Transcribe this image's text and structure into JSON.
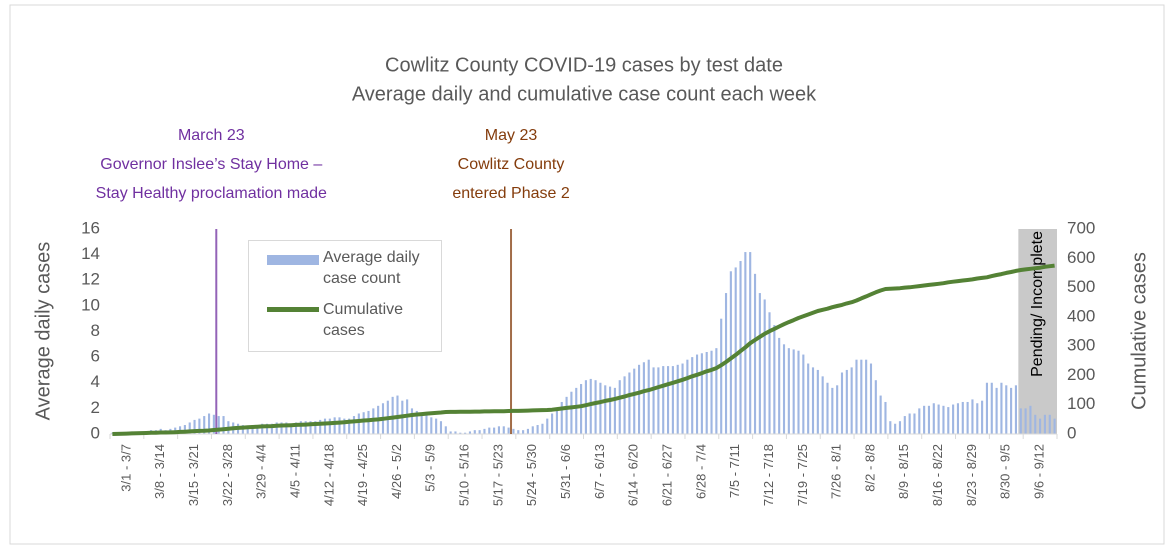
{
  "chart_data": {
    "type": "bar-line",
    "title": "Cowlitz County COVID-19 cases by test date",
    "subtitle": "Average daily and cumulative case count each week",
    "y_label": "Average daily cases",
    "y2_label": "Cumulative cases",
    "ylim": [
      0,
      16
    ],
    "yticks": [
      0,
      2,
      4,
      6,
      8,
      10,
      12,
      14,
      16
    ],
    "y2lim": [
      0,
      700
    ],
    "y2ticks": [
      0,
      100,
      200,
      300,
      400,
      500,
      600,
      700
    ],
    "annotations": [
      {
        "lines": [
          "March 23",
          "Governor Inslee’s Stay Home –",
          "Stay Healthy proclamation made"
        ],
        "color": "#7030a0"
      },
      {
        "lines": [
          "May 23",
          "Cowlitz County",
          "entered Phase 2"
        ],
        "color": "#843c0c"
      }
    ],
    "shaded_label": "Pending/ Incomplete",
    "categories": [
      null,
      null,
      null,
      "3/1 - 3/7",
      null,
      null,
      null,
      null,
      null,
      null,
      "3/8 - 3/14",
      null,
      null,
      null,
      null,
      null,
      null,
      "3/15 - 3/21",
      null,
      null,
      null,
      null,
      null,
      null,
      "3/22 - 3/28",
      null,
      null,
      null,
      null,
      null,
      null,
      "3/29 - 4/4",
      null,
      null,
      null,
      null,
      null,
      null,
      "4/5 - 4/11",
      null,
      null,
      null,
      null,
      null,
      null,
      "4/12 - 4/18",
      null,
      null,
      null,
      null,
      null,
      null,
      "4/19 - 4/25",
      null,
      null,
      null,
      null,
      null,
      null,
      "4/26 - 5/2",
      null,
      null,
      null,
      null,
      null,
      null,
      "5/3 - 5/9",
      null,
      null,
      null,
      null,
      null,
      null,
      "5/10 - 5/16",
      null,
      null,
      null,
      null,
      null,
      null,
      "5/17 - 5/23",
      null,
      null,
      null,
      null,
      null,
      null,
      "5/24 - 5/30",
      null,
      null,
      null,
      null,
      null,
      null,
      "5/31 - 6/6",
      null,
      null,
      null,
      null,
      null,
      null,
      "6/7 - 6/13",
      null,
      null,
      null,
      null,
      null,
      null,
      "6/14 - 6/20",
      null,
      null,
      null,
      null,
      null,
      null,
      "6/21 - 6/27",
      null,
      null,
      null,
      null,
      null,
      null,
      "6/28 - 7/4",
      null,
      null,
      null,
      null,
      null,
      null,
      "7/5 - 7/11",
      null,
      null,
      null,
      null,
      null,
      null,
      "7/12 - 7/18",
      null,
      null,
      null,
      null,
      null,
      null,
      "7/19 - 7/25",
      null,
      null,
      null,
      null,
      null,
      null,
      "7/26 - 8/1",
      null,
      null,
      null,
      null,
      null,
      null,
      "8/2 - 8/8",
      null,
      null,
      null,
      null,
      null,
      null,
      "8/9 - 8/15",
      null,
      null,
      null,
      null,
      null,
      null,
      "8/16 - 8/22",
      null,
      null,
      null,
      null,
      null,
      null,
      "8/23 - 8/29",
      null,
      null,
      null,
      null,
      null,
      null,
      "8/30 - 9/5",
      null,
      null,
      null,
      null,
      null,
      null,
      "9/6 - 9/12",
      null,
      null,
      null
    ],
    "series": [
      {
        "name": "Average daily case count",
        "color": "#9fb6e2",
        "values": [
          0.1,
          0.1,
          0.1,
          0.1,
          0.2,
          0.1,
          0.2,
          0.2,
          0.3,
          0.3,
          0.4,
          0.3,
          0.4,
          0.5,
          0.6,
          0.7,
          0.9,
          1.1,
          1.2,
          1.4,
          1.6,
          1.5,
          1.4,
          1.4,
          1.0,
          0.9,
          0.8,
          0.7,
          0.6,
          0.7,
          0.7,
          0.8,
          0.8,
          0.8,
          0.9,
          0.9,
          0.9,
          0.8,
          0.9,
          1.0,
          1.0,
          1.0,
          1.0,
          1.1,
          1.2,
          1.2,
          1.3,
          1.3,
          1.2,
          1.2,
          1.4,
          1.6,
          1.7,
          1.8,
          2.0,
          2.2,
          2.4,
          2.6,
          2.9,
          3.0,
          2.6,
          2.7,
          2.0,
          1.8,
          1.6,
          1.5,
          1.3,
          1.2,
          1.0,
          0.6,
          0.2,
          0.2,
          0.1,
          0.1,
          0.2,
          0.3,
          0.3,
          0.4,
          0.5,
          0.5,
          0.6,
          0.6,
          0.5,
          0.4,
          0.3,
          0.3,
          0.4,
          0.6,
          0.7,
          0.8,
          1.2,
          1.6,
          2.0,
          2.5,
          2.9,
          3.3,
          3.6,
          3.9,
          4.2,
          4.3,
          4.2,
          4.0,
          3.8,
          3.7,
          3.6,
          4.2,
          4.5,
          4.8,
          5.1,
          5.4,
          5.6,
          5.8,
          5.2,
          5.2,
          5.3,
          5.3,
          5.3,
          5.4,
          5.5,
          5.8,
          6.0,
          6.2,
          6.3,
          6.4,
          6.5,
          6.7,
          9.0,
          11.0,
          12.7,
          13.0,
          13.5,
          14.2,
          14.2,
          12.5,
          11.0,
          10.5,
          9.5,
          8.5,
          7.5,
          7.0,
          6.7,
          6.6,
          6.5,
          6.2,
          5.5,
          5.2,
          5.0,
          4.5,
          4.0,
          3.6,
          3.8,
          4.8,
          5.0,
          5.2,
          5.8,
          5.8,
          5.8,
          5.5,
          4.2,
          3.0,
          2.5,
          1.0,
          0.8,
          1.0,
          1.4,
          1.6,
          1.6,
          2.0,
          2.2,
          2.2,
          2.4,
          2.3,
          2.2,
          2.1,
          2.3,
          2.4,
          2.5,
          2.5,
          2.7,
          2.4,
          2.6,
          4.0,
          4.0,
          3.6,
          4.0,
          3.8,
          3.6,
          3.8,
          2.0,
          2.0,
          2.2,
          1.5,
          1.2,
          1.5,
          1.5,
          1.2
        ]
      },
      {
        "name": "Cumulative cases",
        "color": "#548235",
        "axis": "y2",
        "values": [
          0,
          0.5,
          1,
          1.5,
          2,
          2.5,
          3,
          3.5,
          4,
          4.5,
          5,
          5,
          5.5,
          6,
          7,
          8,
          9,
          10,
          10.5,
          11,
          12,
          13.5,
          15,
          16.5,
          18,
          19.5,
          21,
          22,
          23,
          24,
          25,
          26,
          26.5,
          27,
          28,
          29,
          29.5,
          30,
          31,
          31.5,
          32,
          33,
          34,
          35,
          36,
          37,
          38,
          39,
          40,
          41.5,
          43,
          44.5,
          46,
          47,
          48.5,
          50,
          52,
          54,
          56,
          58,
          60,
          62.5,
          65,
          66.5,
          68,
          69.5,
          71,
          72,
          73.5,
          75,
          75.5,
          75.5,
          76,
          76,
          76,
          76.5,
          76.5,
          77,
          77,
          77.5,
          78,
          78,
          78.5,
          79,
          79,
          79.5,
          80,
          80.5,
          81,
          81.5,
          82,
          83,
          85,
          87,
          89,
          91,
          93,
          95,
          98.5,
          102,
          106,
          109,
          113,
          116,
          120,
          124,
          128,
          133,
          137,
          141,
          146,
          150,
          155,
          160,
          165,
          170,
          175,
          180,
          185,
          191,
          197,
          202,
          208,
          214,
          219,
          225,
          235,
          246,
          258,
          270,
          283,
          296,
          310,
          321,
          332,
          342,
          351,
          359,
          367,
          375,
          382,
          389,
          396,
          402,
          408,
          414,
          420,
          424,
          428,
          433,
          437,
          441,
          446,
          450,
          456,
          463,
          470,
          477,
          484,
          490,
          495,
          496,
          497,
          498,
          500,
          501,
          503,
          505,
          507,
          509,
          511,
          513,
          515,
          518,
          520,
          522,
          524,
          526,
          528,
          531,
          533,
          535,
          539,
          543,
          546,
          550,
          553,
          557,
          560,
          562,
          564,
          566,
          568,
          571,
          573,
          575
        ]
      }
    ]
  }
}
